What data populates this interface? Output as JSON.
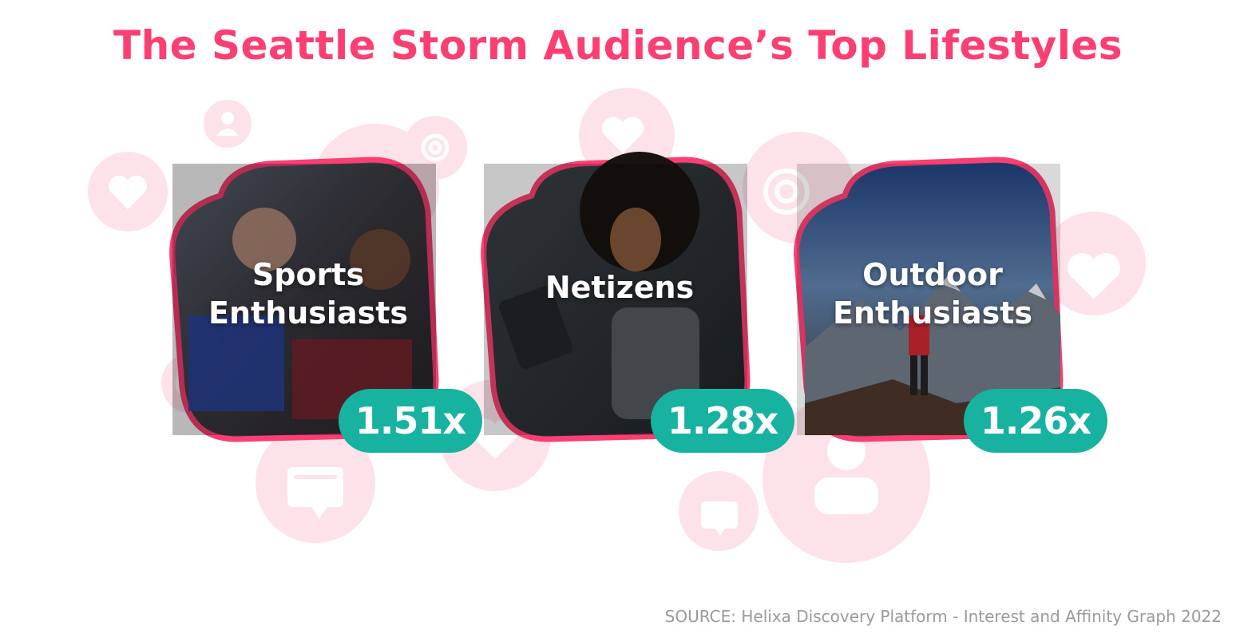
{
  "title": "The Seattle Storm Audience’s Top Lifestyles",
  "source": "SOURCE: Helixa Discovery Platform - Interest and Affinity Graph 2022",
  "colors": {
    "accent": "#fb3f72",
    "badge": "#17b2a0",
    "bubble": "#fde0e6",
    "source_text": "#9a9a9a"
  },
  "background_icons": [
    "user-icon",
    "at-sign-icon",
    "heart-icon",
    "heart-icon",
    "target-icon",
    "heart-icon",
    "target-icon",
    "chat-bubble-icon",
    "chat-bubble-icon",
    "user-icon",
    "heart-icon"
  ],
  "lifestyles": [
    {
      "label_line1": "Sports",
      "label_line2": "Enthusiasts",
      "multiplier": "1.51x",
      "photo": "sports-fans-photo"
    },
    {
      "label_line1": "Netizens",
      "label_line2": "",
      "multiplier": "1.28x",
      "photo": "woman-with-tablet-photo"
    },
    {
      "label_line1": "Outdoor",
      "label_line2": "Enthusiasts",
      "multiplier": "1.26x",
      "photo": "hiker-on-mountain-photo"
    }
  ]
}
